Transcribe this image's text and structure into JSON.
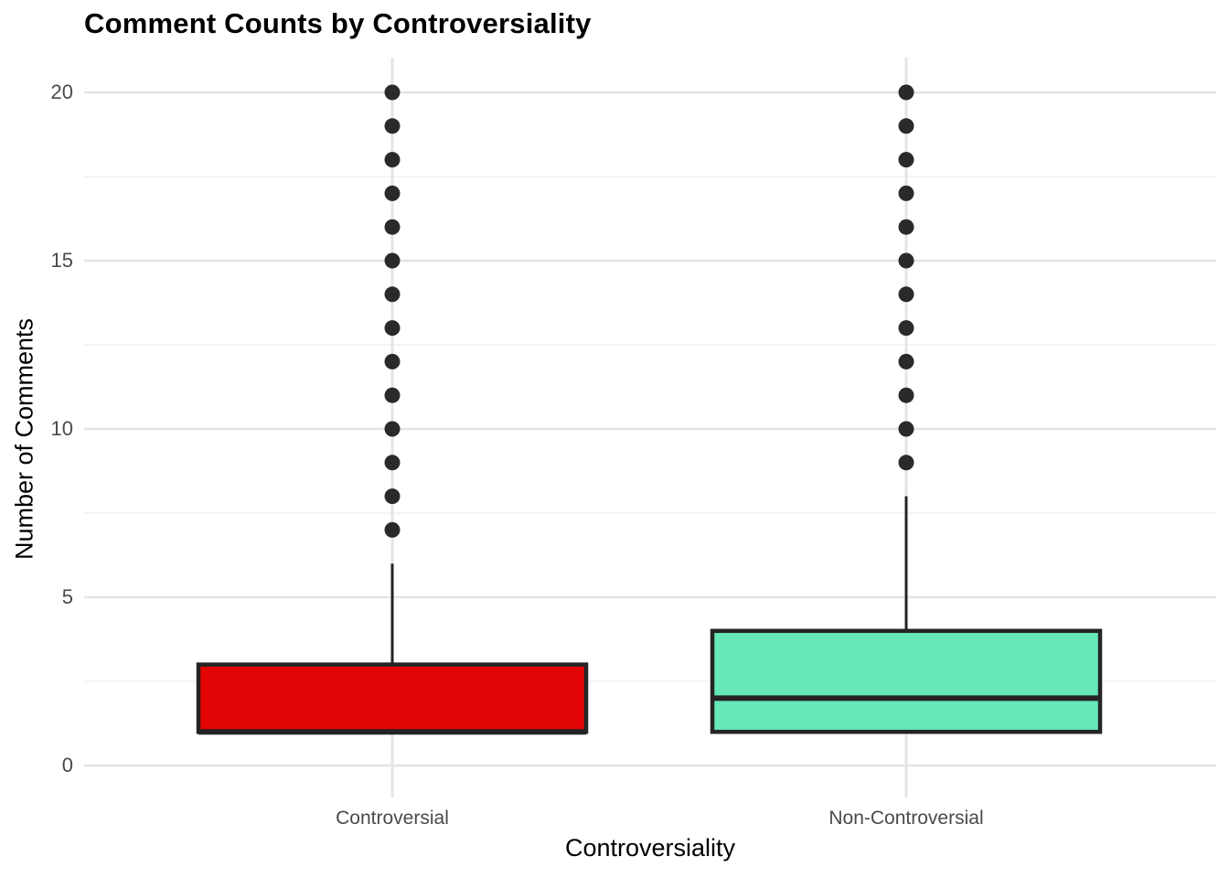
{
  "chart_data": {
    "type": "boxplot",
    "title": "Comment Counts by Controversiality",
    "xlabel": "Controversiality",
    "ylabel": "Number of Comments",
    "ylim": [
      0,
      20
    ],
    "yticks": [
      0,
      5,
      10,
      15,
      20
    ],
    "yticks_minor": [
      2.5,
      7.5,
      12.5,
      17.5
    ],
    "categories": [
      "Controversial",
      "Non-Controversial"
    ],
    "legend": "none",
    "grid": {
      "horizontal_major": true,
      "horizontal_minor": true,
      "vertical_at_categories": true
    },
    "series": [
      {
        "category": "Controversial",
        "fill_color": "#E30505",
        "q1": 1,
        "median": 1,
        "q3": 3,
        "whisker_low": 1,
        "whisker_high": 6,
        "outliers": [
          7,
          8,
          9,
          10,
          11,
          12,
          13,
          14,
          15,
          16,
          17,
          18,
          19,
          20
        ]
      },
      {
        "category": "Non-Controversial",
        "fill_color": "#66E8B8",
        "q1": 1,
        "median": 2,
        "q3": 4,
        "whisker_low": 1,
        "whisker_high": 8,
        "outliers": [
          9,
          10,
          11,
          12,
          13,
          14,
          15,
          16,
          17,
          18,
          19,
          20
        ]
      }
    ],
    "colors": {
      "box_outline": "#242424",
      "outlier_point": "#2A2A2A",
      "grid_major": "#E4E4E4",
      "grid_minor": "#F0F0F0",
      "tick_label": "#4A4A4A",
      "title_text": "#000000",
      "background": "#FFFFFF"
    }
  }
}
